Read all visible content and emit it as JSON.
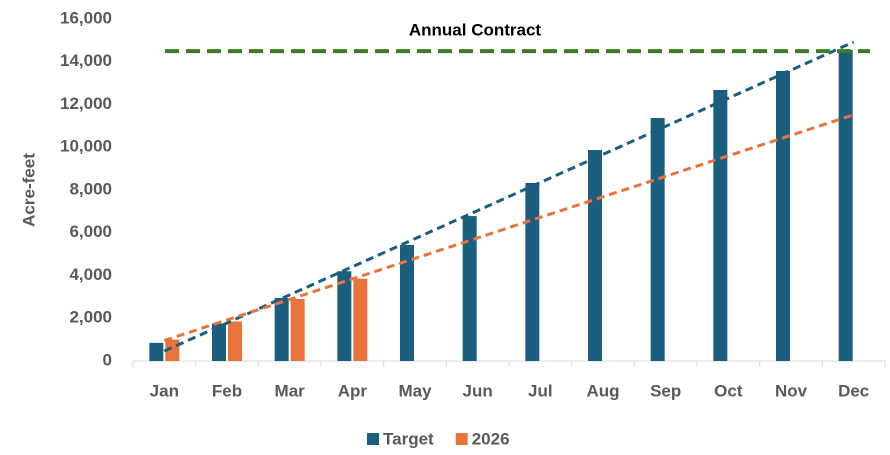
{
  "chart_data": {
    "type": "bar",
    "y_label": "Acre-feet",
    "categories": [
      "Jan",
      "Feb",
      "Mar",
      "Apr",
      "May",
      "Jun",
      "Jul",
      "Aug",
      "Sep",
      "Oct",
      "Nov",
      "Dec"
    ],
    "series": [
      {
        "name": "Target",
        "color": "#1b5e7e",
        "values": [
          850,
          1750,
          2950,
          4200,
          5430,
          6780,
          8330,
          9870,
          11370,
          12680,
          13570,
          14550
        ]
      },
      {
        "name": "2026",
        "color": "#e8743b",
        "values": [
          1000,
          1850,
          2900,
          3850,
          null,
          null,
          null,
          null,
          null,
          null,
          null,
          null
        ]
      }
    ],
    "trendline": true,
    "reference_line": {
      "label": "Annual Contract",
      "value": 14500,
      "color": "#3a7d22"
    },
    "ylim": [
      0,
      16000
    ],
    "yticks": [
      0,
      {
        "value": 2000,
        "label": "2,000"
      },
      {
        "value": 4000,
        "label": "4,000"
      },
      {
        "value": 6000,
        "label": "6,000"
      },
      {
        "value": 8000,
        "label": "8,000"
      },
      {
        "value": 10000,
        "label": "10,000"
      },
      {
        "value": 12000,
        "label": "12,000"
      },
      {
        "value": 14000,
        "label": "14,000"
      },
      {
        "value": 16000,
        "label": "16,000"
      }
    ],
    "legend": "bottom"
  }
}
